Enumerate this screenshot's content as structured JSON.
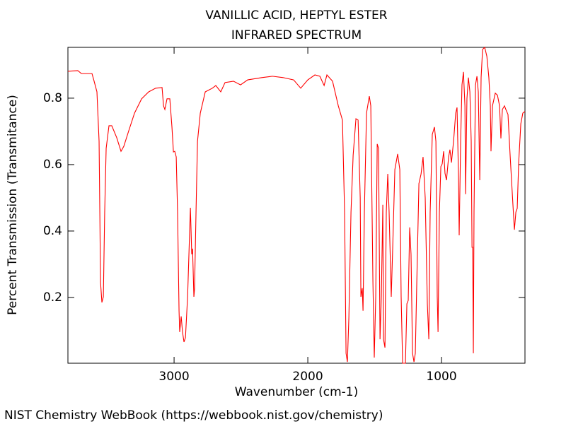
{
  "chart_data": {
    "type": "line",
    "title": "VANILLIC ACID, HEPTYL ESTER",
    "subtitle": "INFRARED SPECTRUM",
    "x_label": "Wavenumber (cm-1)",
    "y_label": "Percent Transmission (Transmitance)",
    "color": "#ff0000",
    "xlim": [
      3794,
      376
    ],
    "ylim": [
      0.002,
      0.953
    ],
    "xticks": [
      3000,
      2000,
      1000
    ],
    "yticks": [
      0.2,
      0.4,
      0.6,
      0.8
    ],
    "x": [
      3794,
      3720,
      3693,
      3614,
      3598,
      3577,
      3561,
      3550,
      3540,
      3529,
      3519,
      3508,
      3487,
      3466,
      3429,
      3397,
      3376,
      3339,
      3296,
      3243,
      3190,
      3138,
      3090,
      3079,
      3069,
      3053,
      3032,
      3016,
      3005,
      2995,
      2984,
      2974,
      2963,
      2958,
      2947,
      2937,
      2926,
      2915,
      2899,
      2884,
      2878,
      2868,
      2862,
      2852,
      2847,
      2836,
      2825,
      2804,
      2767,
      2714,
      2688,
      2651,
      2619,
      2556,
      2503,
      2450,
      2344,
      2265,
      2185,
      2106,
      2053,
      2000,
      1947,
      1910,
      1878,
      1857,
      1815,
      1772,
      1741,
      1725,
      1714,
      1704,
      1693,
      1677,
      1661,
      1640,
      1624,
      1608,
      1603,
      1593,
      1587,
      1577,
      1561,
      1540,
      1529,
      1513,
      1503,
      1492,
      1481,
      1471,
      1460,
      1450,
      1439,
      1434,
      1423,
      1413,
      1402,
      1392,
      1376,
      1365,
      1349,
      1328,
      1312,
      1302,
      1291,
      1270,
      1259,
      1249,
      1238,
      1228,
      1217,
      1206,
      1196,
      1185,
      1169,
      1153,
      1138,
      1122,
      1106,
      1095,
      1085,
      1069,
      1053,
      1042,
      1032,
      1026,
      1016,
      1005,
      995,
      984,
      974,
      963,
      947,
      937,
      926,
      910,
      894,
      884,
      873,
      868,
      857,
      847,
      836,
      825,
      820,
      810,
      799,
      788,
      778,
      772,
      767,
      762,
      757,
      746,
      735,
      725,
      714,
      704,
      693,
      677,
      661,
      646,
      635,
      630,
      619,
      598,
      582,
      566,
      556,
      545,
      529,
      519,
      503,
      487,
      466,
      455,
      444,
      434,
      423,
      407,
      392,
      376
    ],
    "values": [
      0.881,
      0.883,
      0.874,
      0.874,
      0.851,
      0.819,
      0.67,
      0.245,
      0.185,
      0.202,
      0.457,
      0.649,
      0.717,
      0.717,
      0.681,
      0.64,
      0.655,
      0.702,
      0.755,
      0.798,
      0.819,
      0.83,
      0.832,
      0.777,
      0.766,
      0.798,
      0.798,
      0.713,
      0.638,
      0.64,
      0.623,
      0.457,
      0.16,
      0.096,
      0.143,
      0.096,
      0.066,
      0.079,
      0.202,
      0.394,
      0.47,
      0.33,
      0.347,
      0.202,
      0.226,
      0.457,
      0.67,
      0.755,
      0.819,
      0.83,
      0.838,
      0.819,
      0.847,
      0.851,
      0.84,
      0.855,
      0.862,
      0.866,
      0.862,
      0.855,
      0.83,
      0.855,
      0.87,
      0.866,
      0.838,
      0.87,
      0.851,
      0.777,
      0.734,
      0.457,
      0.032,
      0.006,
      0.138,
      0.457,
      0.628,
      0.738,
      0.734,
      0.5,
      0.202,
      0.228,
      0.16,
      0.457,
      0.755,
      0.806,
      0.777,
      0.245,
      0.019,
      0.202,
      0.662,
      0.649,
      0.074,
      0.202,
      0.479,
      0.074,
      0.049,
      0.457,
      0.572,
      0.457,
      0.202,
      0.351,
      0.585,
      0.632,
      0.585,
      0.202,
      0.002,
      0.002,
      0.181,
      0.191,
      0.411,
      0.33,
      0.032,
      0.006,
      0.032,
      0.245,
      0.543,
      0.572,
      0.623,
      0.5,
      0.181,
      0.074,
      0.457,
      0.691,
      0.713,
      0.67,
      0.202,
      0.096,
      0.457,
      0.594,
      0.602,
      0.64,
      0.574,
      0.553,
      0.623,
      0.645,
      0.606,
      0.67,
      0.755,
      0.772,
      0.564,
      0.387,
      0.67,
      0.84,
      0.879,
      0.777,
      0.511,
      0.798,
      0.862,
      0.819,
      0.67,
      0.351,
      0.351,
      0.032,
      0.457,
      0.84,
      0.866,
      0.819,
      0.553,
      0.862,
      0.947,
      0.953,
      0.926,
      0.862,
      0.777,
      0.64,
      0.777,
      0.815,
      0.809,
      0.777,
      0.679,
      0.766,
      0.777,
      0.766,
      0.751,
      0.628,
      0.479,
      0.404,
      0.457,
      0.468,
      0.606,
      0.723,
      0.755,
      0.76
    ]
  },
  "footer": "NIST Chemistry WebBook (https://webbook.nist.gov/chemistry)"
}
